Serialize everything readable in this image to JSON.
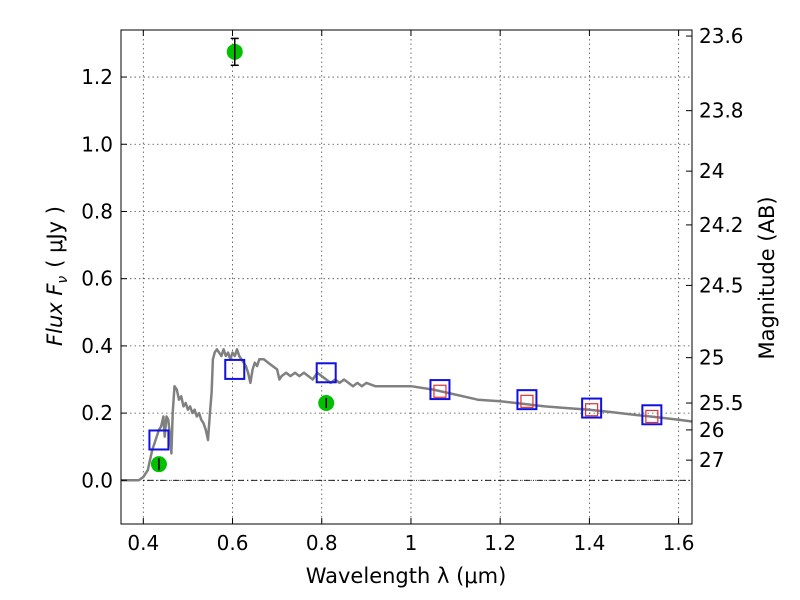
{
  "chart_data": {
    "type": "scatter",
    "xlabel": "Wavelength  λ (μm)",
    "ylabel": "Flux  F",
    "ylabel_sub": "ν",
    "ylabel_unit": "( μJy )",
    "y2label": "Magnitude (AB)",
    "xlim": [
      0.35,
      1.63
    ],
    "ylim": [
      -0.13,
      1.34
    ],
    "grid": true,
    "x_ticks": [
      {
        "v": 0.4,
        "label": "0.4"
      },
      {
        "v": 0.6,
        "label": "0.6"
      },
      {
        "v": 0.8,
        "label": "0.8"
      },
      {
        "v": 1.0,
        "label": "1"
      },
      {
        "v": 1.2,
        "label": "1.2"
      },
      {
        "v": 1.4,
        "label": "1.4"
      },
      {
        "v": 1.6,
        "label": "1.6"
      }
    ],
    "y_ticks": [
      {
        "v": 0.0,
        "label": "0.0"
      },
      {
        "v": 0.2,
        "label": "0.2"
      },
      {
        "v": 0.4,
        "label": "0.4"
      },
      {
        "v": 0.6,
        "label": "0.6"
      },
      {
        "v": 0.8,
        "label": "0.8"
      },
      {
        "v": 1.0,
        "label": "1.0"
      },
      {
        "v": 1.2,
        "label": "1.2"
      }
    ],
    "y2_ticks": [
      {
        "flux": 1.322,
        "label": "23.6"
      },
      {
        "flux": 1.1,
        "label": "23.8"
      },
      {
        "flux": 0.92,
        "label": "24"
      },
      {
        "flux": 0.76,
        "label": "24.2"
      },
      {
        "flux": 0.58,
        "label": "24.5"
      },
      {
        "flux": 0.365,
        "label": "25"
      },
      {
        "flux": 0.23,
        "label": "25.5"
      },
      {
        "flux": 0.15,
        "label": "26"
      },
      {
        "flux": 0.06,
        "label": "27"
      }
    ],
    "series": [
      {
        "kind": "model_spectrum",
        "color": "#808080",
        "points": [
          [
            0.35,
            0.0
          ],
          [
            0.39,
            0.0
          ],
          [
            0.4,
            0.01
          ],
          [
            0.41,
            0.03
          ],
          [
            0.415,
            0.06
          ],
          [
            0.42,
            0.09
          ],
          [
            0.425,
            0.11
          ],
          [
            0.43,
            0.13
          ],
          [
            0.435,
            0.15
          ],
          [
            0.44,
            0.16
          ],
          [
            0.445,
            0.19
          ],
          [
            0.448,
            0.13
          ],
          [
            0.452,
            0.19
          ],
          [
            0.456,
            0.18
          ],
          [
            0.46,
            0.13
          ],
          [
            0.463,
            0.08
          ],
          [
            0.466,
            0.2
          ],
          [
            0.47,
            0.28
          ],
          [
            0.475,
            0.27
          ],
          [
            0.48,
            0.24
          ],
          [
            0.485,
            0.25
          ],
          [
            0.49,
            0.22
          ],
          [
            0.495,
            0.23
          ],
          [
            0.5,
            0.21
          ],
          [
            0.505,
            0.22
          ],
          [
            0.51,
            0.2
          ],
          [
            0.515,
            0.21
          ],
          [
            0.52,
            0.19
          ],
          [
            0.525,
            0.2
          ],
          [
            0.53,
            0.18
          ],
          [
            0.535,
            0.17
          ],
          [
            0.54,
            0.15
          ],
          [
            0.545,
            0.12
          ],
          [
            0.55,
            0.21
          ],
          [
            0.553,
            0.26
          ],
          [
            0.556,
            0.36
          ],
          [
            0.56,
            0.38
          ],
          [
            0.565,
            0.39
          ],
          [
            0.57,
            0.38
          ],
          [
            0.575,
            0.37
          ],
          [
            0.58,
            0.39
          ],
          [
            0.585,
            0.37
          ],
          [
            0.59,
            0.38
          ],
          [
            0.595,
            0.36
          ],
          [
            0.6,
            0.38
          ],
          [
            0.605,
            0.37
          ],
          [
            0.61,
            0.39
          ],
          [
            0.615,
            0.37
          ],
          [
            0.62,
            0.36
          ],
          [
            0.625,
            0.35
          ],
          [
            0.63,
            0.34
          ],
          [
            0.635,
            0.32
          ],
          [
            0.64,
            0.29
          ],
          [
            0.645,
            0.33
          ],
          [
            0.65,
            0.35
          ],
          [
            0.655,
            0.34
          ],
          [
            0.66,
            0.36
          ],
          [
            0.67,
            0.36
          ],
          [
            0.68,
            0.35
          ],
          [
            0.69,
            0.34
          ],
          [
            0.7,
            0.33
          ],
          [
            0.705,
            0.3
          ],
          [
            0.71,
            0.31
          ],
          [
            0.72,
            0.32
          ],
          [
            0.73,
            0.31
          ],
          [
            0.74,
            0.32
          ],
          [
            0.75,
            0.31
          ],
          [
            0.76,
            0.32
          ],
          [
            0.77,
            0.31
          ],
          [
            0.78,
            0.3
          ],
          [
            0.79,
            0.32
          ],
          [
            0.8,
            0.31
          ],
          [
            0.81,
            0.3
          ],
          [
            0.82,
            0.29
          ],
          [
            0.83,
            0.3
          ],
          [
            0.84,
            0.29
          ],
          [
            0.85,
            0.3
          ],
          [
            0.86,
            0.29
          ],
          [
            0.87,
            0.28
          ],
          [
            0.88,
            0.29
          ],
          [
            0.89,
            0.28
          ],
          [
            0.9,
            0.29
          ],
          [
            0.92,
            0.28
          ],
          [
            0.94,
            0.28
          ],
          [
            0.96,
            0.28
          ],
          [
            0.98,
            0.28
          ],
          [
            1.0,
            0.28
          ],
          [
            1.05,
            0.27
          ],
          [
            1.1,
            0.255
          ],
          [
            1.15,
            0.24
          ],
          [
            1.2,
            0.235
          ],
          [
            1.25,
            0.228
          ],
          [
            1.3,
            0.22
          ],
          [
            1.35,
            0.215
          ],
          [
            1.4,
            0.21
          ],
          [
            1.45,
            0.203
          ],
          [
            1.5,
            0.195
          ],
          [
            1.55,
            0.188
          ],
          [
            1.6,
            0.18
          ],
          [
            1.63,
            0.175
          ]
        ]
      },
      {
        "kind": "synthetic_photometry",
        "marker": "square",
        "color": "#1010e0",
        "points": [
          [
            0.435,
            0.12
          ],
          [
            0.605,
            0.33
          ],
          [
            0.81,
            0.32
          ],
          [
            1.065,
            0.27
          ],
          [
            1.26,
            0.24
          ],
          [
            1.405,
            0.215
          ],
          [
            1.54,
            0.195
          ]
        ]
      },
      {
        "kind": "model_photometry_small",
        "marker": "square",
        "color": "#e03030",
        "points": [
          [
            1.065,
            0.265
          ],
          [
            1.26,
            0.235
          ],
          [
            1.405,
            0.21
          ],
          [
            1.54,
            0.19
          ]
        ]
      },
      {
        "kind": "observed",
        "marker": "circle",
        "color": "#00c000",
        "points": [
          {
            "x": 0.435,
            "y": 0.048,
            "err": 0.018
          },
          {
            "x": 0.605,
            "y": 1.275,
            "err": 0.04
          },
          {
            "x": 0.81,
            "y": 0.23,
            "err": 0.015
          }
        ]
      }
    ]
  }
}
